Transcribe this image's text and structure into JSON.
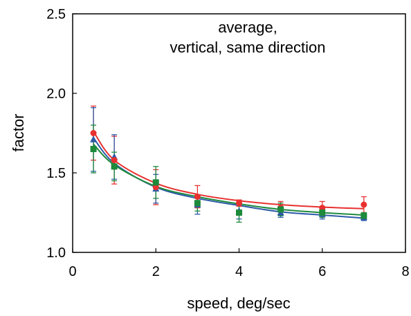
{
  "chart_data": {
    "type": "scatter",
    "title": "",
    "annotation": [
      "average,",
      "vertical, same direction"
    ],
    "xlabel": "speed, deg/sec",
    "ylabel": "factor",
    "xlim": [
      0,
      8
    ],
    "ylim": [
      1.0,
      2.5
    ],
    "x_ticks": [
      0,
      2,
      4,
      6,
      8
    ],
    "y_ticks": [
      1.0,
      1.5,
      2.0,
      2.5
    ],
    "x_tick_labels": [
      "0",
      "2",
      "4",
      "6",
      "8"
    ],
    "y_tick_labels": [
      "1.0",
      "1.5",
      "2.0",
      "2.5"
    ],
    "grid": false,
    "legend": "none",
    "x": [
      0.5,
      1,
      2,
      3,
      4,
      5,
      6,
      7
    ],
    "series": [
      {
        "color": "#e8302f",
        "marker": "circle",
        "values": [
          1.75,
          1.58,
          1.41,
          1.35,
          1.31,
          1.28,
          1.28,
          1.3
        ],
        "error": [
          0.17,
          0.15,
          0.11,
          0.07,
          0.02,
          0.04,
          0.04,
          0.05
        ],
        "fit": [
          1.76,
          1.58,
          1.435,
          1.365,
          1.325,
          1.3,
          1.285,
          1.275
        ]
      },
      {
        "color": "#2c5aa8",
        "marker": "triangle",
        "values": [
          1.71,
          1.6,
          1.4,
          1.3,
          1.26,
          1.25,
          1.24,
          1.22
        ],
        "error": [
          0.2,
          0.14,
          0.09,
          0.06,
          0.05,
          0.03,
          0.03,
          0.02
        ],
        "fit": [
          1.72,
          1.56,
          1.41,
          1.34,
          1.295,
          1.255,
          1.235,
          1.215
        ]
      },
      {
        "color": "#1e8a3c",
        "marker": "square",
        "values": [
          1.65,
          1.54,
          1.44,
          1.31,
          1.25,
          1.27,
          1.25,
          1.23
        ],
        "error": [
          0.15,
          0.09,
          0.1,
          0.05,
          0.06,
          0.04,
          0.03,
          0.02
        ],
        "fit": [
          1.68,
          1.55,
          1.415,
          1.35,
          1.305,
          1.27,
          1.25,
          1.235
        ]
      }
    ]
  }
}
